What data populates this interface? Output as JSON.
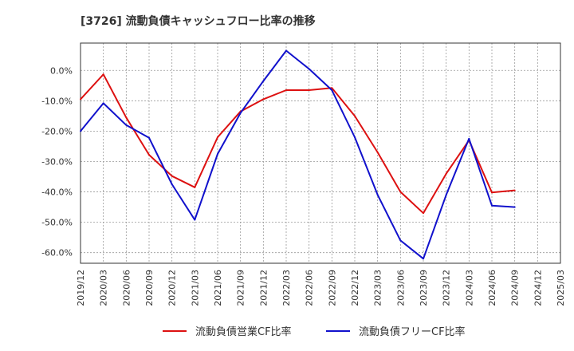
{
  "title": "[3726]  流動負債キャッシュフロー比率の推移",
  "chart_data": {
    "type": "line",
    "title": "[3726]  流動負債キャッシュフロー比率の推移",
    "xlabel": "",
    "ylabel": "",
    "ylim": [
      -63.5,
      9
    ],
    "y_ticks": [
      0,
      -10,
      -20,
      -30,
      -40,
      -50,
      -60
    ],
    "y_tick_labels": [
      "0.0%",
      "-10.0%",
      "-20.0%",
      "-30.0%",
      "-40.0%",
      "-50.0%",
      "-60.0%"
    ],
    "x_tick_labels": [
      "2019/12",
      "2020/03",
      "2020/06",
      "2020/09",
      "2020/12",
      "2021/03",
      "2021/06",
      "2021/09",
      "2021/12",
      "2022/03",
      "2022/06",
      "2022/09",
      "2022/12",
      "2023/03",
      "2023/06",
      "2023/09",
      "2023/12",
      "2024/03",
      "2024/06",
      "2024/09",
      "2024/12",
      "2025/03"
    ],
    "grid": true,
    "legend_position": "bottom",
    "series": [
      {
        "name": "流動負債営業CF比率",
        "color": "#dd1111",
        "x": [
          "2019/12",
          "2020/03",
          "2020/06",
          "2020/09",
          "2020/12",
          "2021/03",
          "2021/06",
          "2021/09",
          "2021/12",
          "2022/03",
          "2022/06",
          "2022/09",
          "2022/12",
          "2023/03",
          "2023/06",
          "2023/09",
          "2023/12",
          "2024/03",
          "2024/06",
          "2024/09"
        ],
        "values": [
          -9.5,
          -1.3,
          -15.5,
          -27.8,
          -34.8,
          -38.5,
          -22,
          -13.5,
          -9.5,
          -6.5,
          -6.5,
          -5.8,
          -15,
          -27,
          -40,
          -47,
          -34,
          -23,
          -40.2,
          -39.5
        ]
      },
      {
        "name": "流動負債フリーCF比率",
        "color": "#1111cc",
        "x": [
          "2019/12",
          "2020/03",
          "2020/06",
          "2020/09",
          "2020/12",
          "2021/03",
          "2021/06",
          "2021/09",
          "2021/12",
          "2022/03",
          "2022/06",
          "2022/09",
          "2022/12",
          "2023/03",
          "2023/06",
          "2023/09",
          "2023/12",
          "2024/03",
          "2024/06",
          "2024/09"
        ],
        "values": [
          -20,
          -10.8,
          -18,
          -22.2,
          -37.5,
          -49.2,
          -27.5,
          -14,
          -3.5,
          6.5,
          0.5,
          -6.5,
          -22,
          -41,
          -56,
          -62,
          -41,
          -22.5,
          -44.5,
          -45
        ]
      }
    ]
  }
}
